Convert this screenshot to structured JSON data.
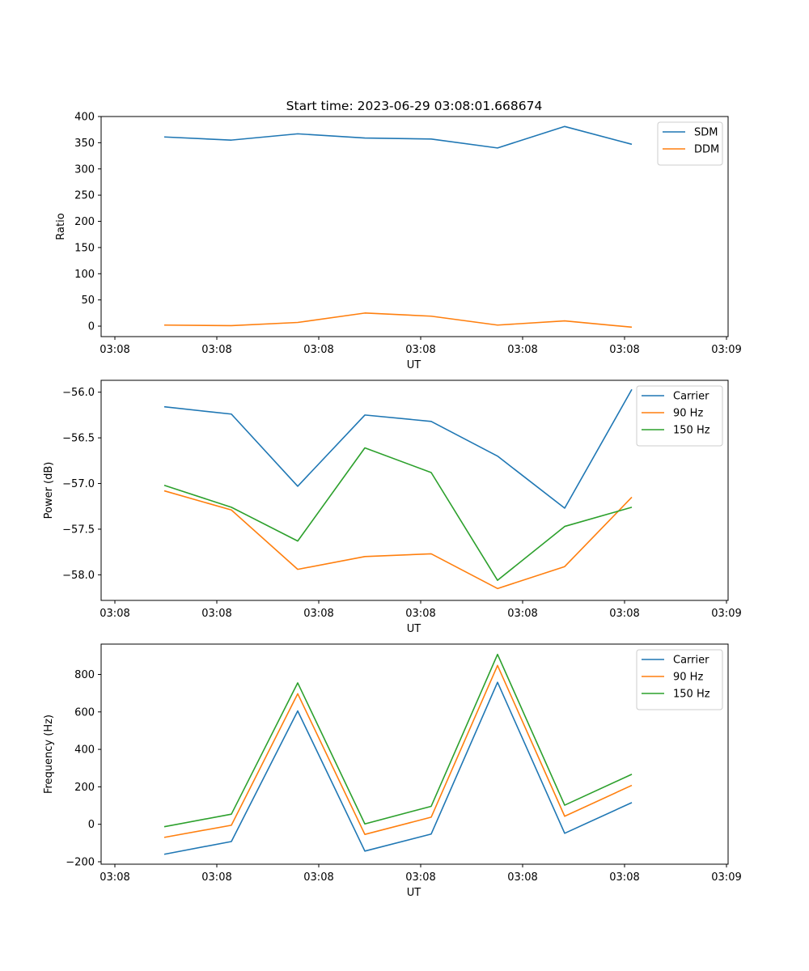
{
  "title": "Start time: 2023-06-29 03:08:01.668674",
  "colors": {
    "blue": "#1f77b4",
    "orange": "#ff7f0e",
    "green": "#2ca02c"
  },
  "chart_data": [
    {
      "type": "line",
      "xlabel": "UT",
      "ylabel": "Ratio",
      "x_ticks": [
        "03:08",
        "03:08",
        "03:08",
        "03:08",
        "03:08",
        "03:08",
        "03:09"
      ],
      "ylim": [
        -20,
        400
      ],
      "y_ticks": [
        0,
        50,
        100,
        150,
        200,
        250,
        300,
        350,
        400
      ],
      "y_tick_labels": [
        "0",
        "50",
        "100",
        "150",
        "200",
        "250",
        "300",
        "350",
        "400"
      ],
      "legend": "top-right",
      "series": [
        {
          "name": "SDM",
          "color": "#1f77b4",
          "values": [
            361,
            355,
            367,
            359,
            357,
            340,
            381,
            347
          ]
        },
        {
          "name": "DDM",
          "color": "#ff7f0e",
          "values": [
            2,
            1,
            7,
            25,
            19,
            2,
            10,
            -2
          ]
        }
      ]
    },
    {
      "type": "line",
      "xlabel": "UT",
      "ylabel": "Power (dB)",
      "x_ticks": [
        "03:08",
        "03:08",
        "03:08",
        "03:08",
        "03:08",
        "03:08",
        "03:09"
      ],
      "ylim": [
        -58.28,
        -55.87
      ],
      "y_ticks": [
        -58.0,
        -57.5,
        -57.0,
        -56.5,
        -56.0
      ],
      "y_tick_labels": [
        "−58.0",
        "−57.5",
        "−57.0",
        "−56.5",
        "−56.0"
      ],
      "legend": "top-right",
      "series": [
        {
          "name": "Carrier",
          "color": "#1f77b4",
          "values": [
            -56.16,
            -56.24,
            -57.03,
            -56.25,
            -56.32,
            -56.7,
            -57.27,
            -55.97
          ]
        },
        {
          "name": "90 Hz",
          "color": "#ff7f0e",
          "values": [
            -57.08,
            -57.29,
            -57.94,
            -57.8,
            -57.77,
            -58.15,
            -57.91,
            -57.15
          ]
        },
        {
          "name": "150 Hz",
          "color": "#2ca02c",
          "values": [
            -57.02,
            -57.26,
            -57.63,
            -56.61,
            -56.88,
            -58.06,
            -57.47,
            -57.26
          ]
        }
      ]
    },
    {
      "type": "line",
      "xlabel": "UT",
      "ylabel": "Frequency (Hz)",
      "x_ticks": [
        "03:08",
        "03:08",
        "03:08",
        "03:08",
        "03:08",
        "03:08",
        "03:09"
      ],
      "ylim": [
        -213,
        962
      ],
      "y_ticks": [
        -200,
        0,
        200,
        400,
        600,
        800
      ],
      "y_tick_labels": [
        "−200",
        "0",
        "200",
        "400",
        "600",
        "800"
      ],
      "legend": "top-right",
      "series": [
        {
          "name": "Carrier",
          "color": "#1f77b4",
          "values": [
            -160,
            -92,
            605,
            -143,
            -52,
            758,
            -48,
            116
          ]
        },
        {
          "name": "90 Hz",
          "color": "#ff7f0e",
          "values": [
            -70,
            -5,
            697,
            -54,
            38,
            848,
            43,
            208
          ]
        },
        {
          "name": "150 Hz",
          "color": "#2ca02c",
          "values": [
            -13,
            54,
            755,
            2,
            96,
            907,
            102,
            267
          ]
        }
      ]
    }
  ]
}
